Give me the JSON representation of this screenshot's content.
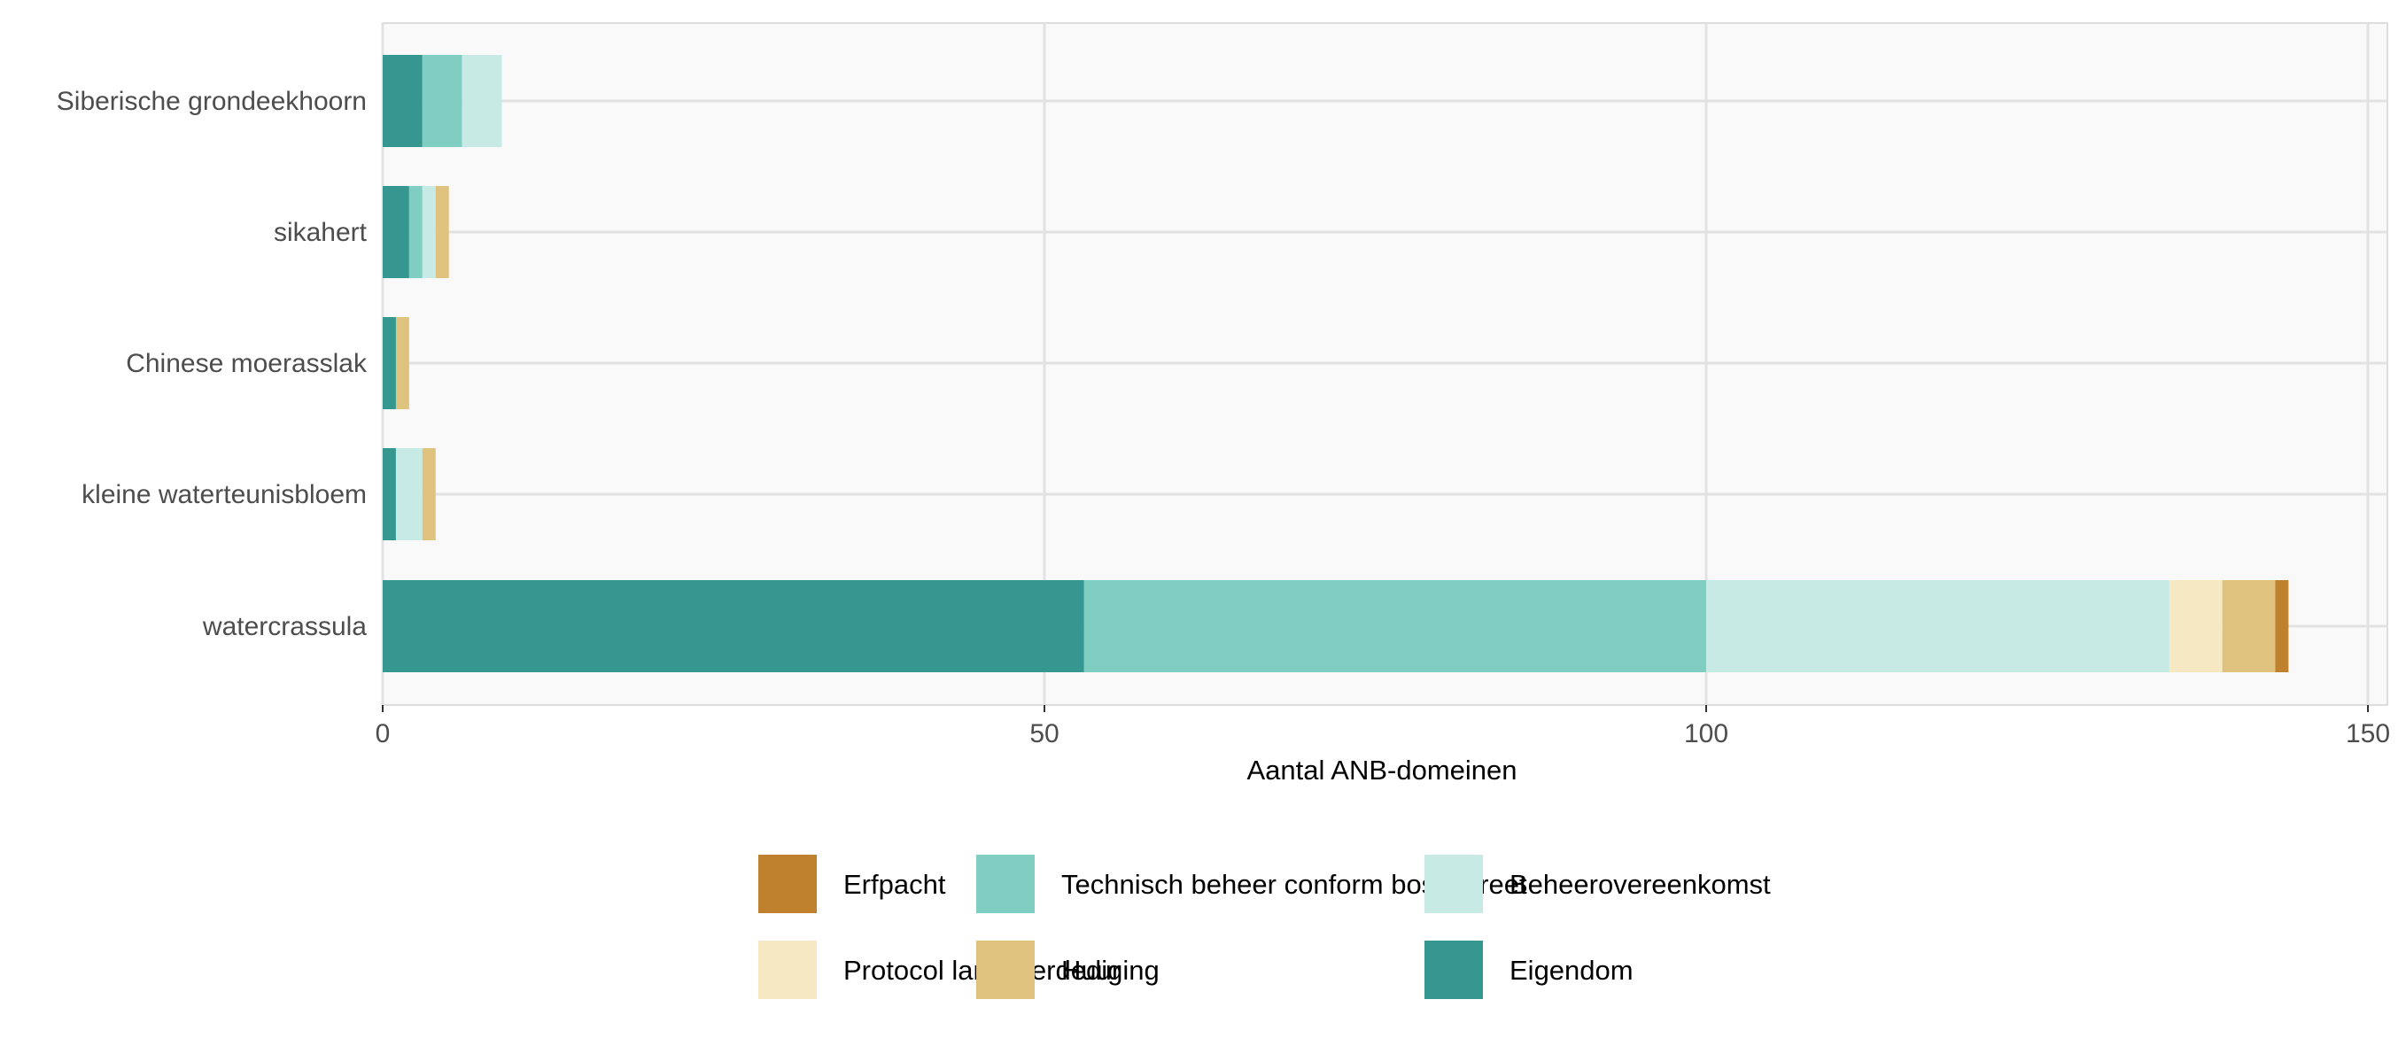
{
  "chart_data": {
    "type": "bar",
    "orientation": "horizontal",
    "stacked": true,
    "xlabel": "Aantal ANB-domeinen",
    "ylabel": "",
    "xlim": [
      0,
      151
    ],
    "xticks": [
      0,
      50,
      100,
      150
    ],
    "grid": true,
    "legend_position": "bottom",
    "categories": [
      "Siberische grondeekhoorn",
      "sikahert",
      "Chinese moerasslak",
      "kleine waterteunisbloem",
      "watercrassula"
    ],
    "series": [
      {
        "name": "Eigendom",
        "color": "#35978f",
        "values": [
          3,
          2,
          1,
          1,
          53
        ]
      },
      {
        "name": "Technisch beheer conform bosdecreet",
        "color": "#80cdc1",
        "values": [
          3,
          1,
          0,
          0,
          47
        ]
      },
      {
        "name": "Beheerovereenkomst",
        "color": "#c7eae5",
        "values": [
          3,
          1,
          0,
          2,
          35
        ]
      },
      {
        "name": "Protocol landsverdediging",
        "color": "#f6e8c3",
        "values": [
          0,
          0,
          0,
          0,
          4
        ]
      },
      {
        "name": "Huur",
        "color": "#dfc27d",
        "values": [
          0,
          1,
          1,
          1,
          4
        ]
      },
      {
        "name": "Erfpacht",
        "color": "#bf812d",
        "values": [
          0,
          0,
          0,
          0,
          1
        ]
      }
    ],
    "legend_order": [
      "Erfpacht",
      "Protocol landsverdediging",
      "Technisch beheer conform bosdecreet",
      "Huur",
      "Beheerovereenkomst",
      "Eigendom"
    ]
  }
}
